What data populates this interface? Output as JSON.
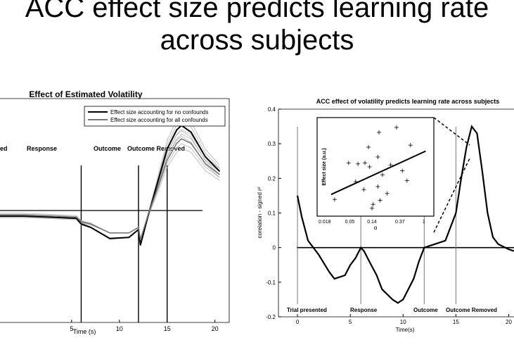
{
  "slide": {
    "title_line1": "ACC effect size predicts learning rate",
    "title_line2": "across subjects"
  },
  "chart_data": [
    {
      "type": "line",
      "title": "Effect of Estimated Volatility",
      "xlabel": "Time (s)",
      "ylabel": "",
      "x_ticks": [
        5,
        10,
        15,
        20
      ],
      "xlim": [
        -2.5,
        21.5
      ],
      "ylim": [
        -1,
        1
      ],
      "legend_position": "top-right",
      "legend": [
        "Effect size accounting for no confounds",
        "Effect size accounting for all confounds"
      ],
      "event_lines": [
        {
          "label": "ed",
          "x": 0
        },
        {
          "label": "Response",
          "x": 6
        },
        {
          "label": "Outcome",
          "x": 12
        },
        {
          "label": "Outcome Removed",
          "x": 15
        }
      ],
      "series": [
        {
          "name": "Effect size accounting for no confounds",
          "color": "#000000",
          "x": [
            -2.5,
            0,
            3,
            5.5,
            6,
            7,
            9,
            11,
            12,
            12.2,
            13,
            14,
            15,
            16,
            16.5,
            17.5,
            19,
            20.5
          ],
          "y": [
            -0.05,
            -0.05,
            -0.06,
            -0.07,
            -0.12,
            -0.15,
            -0.25,
            -0.24,
            -0.17,
            -0.31,
            -0.05,
            0.25,
            0.55,
            0.72,
            0.76,
            0.7,
            0.48,
            0.35
          ]
        },
        {
          "name": "Effect size accounting for all confounds",
          "color": "#777777",
          "x": [
            -2.5,
            0,
            3,
            5.5,
            6,
            7,
            9,
            11,
            12,
            12.2,
            13,
            14,
            15,
            16,
            16.5,
            17.5,
            19,
            20.5
          ],
          "y": [
            -0.04,
            -0.04,
            -0.05,
            -0.06,
            -0.1,
            -0.12,
            -0.2,
            -0.2,
            -0.15,
            -0.26,
            -0.04,
            0.2,
            0.45,
            0.6,
            0.64,
            0.6,
            0.42,
            0.32
          ]
        }
      ]
    },
    {
      "type": "line",
      "title": "ACC effect of volatility predicts learning rate across subjects",
      "xlabel": "Time(s)",
      "ylabel": "corelation - signed r²",
      "x_ticks": [
        0,
        5,
        10,
        15,
        20
      ],
      "y_ticks": [
        -0.2,
        -0.1,
        0,
        0.1,
        0.2,
        0.3,
        0.4
      ],
      "y_tick_labels": [
        "-0.2",
        "-0.1",
        "0",
        "0.1",
        "0.2",
        "0.3",
        "0.4"
      ],
      "xlim": [
        -1.8,
        20.5
      ],
      "ylim": [
        -0.2,
        0.4
      ],
      "event_lines": [
        {
          "label": "Trial presented",
          "x": 0
        },
        {
          "label": "Response",
          "x": 6
        },
        {
          "label": "Outcome",
          "x": 12
        },
        {
          "label": "Outcome Removed",
          "x": 15
        }
      ],
      "series": [
        {
          "name": "",
          "color": "#000000",
          "x": [
            0,
            0.4,
            1,
            1.5,
            2,
            3,
            3.5,
            4.5,
            5,
            5.5,
            6,
            6.3,
            6.8,
            7.5,
            8,
            9,
            9.5,
            10,
            11,
            11.5,
            12,
            12.5,
            13,
            14,
            15,
            15.5,
            16,
            16.5,
            17,
            17.5,
            18,
            18.5,
            19,
            20,
            20.5
          ],
          "y": [
            0.15,
            0.09,
            0.02,
            0,
            -0.02,
            -0.07,
            -0.09,
            -0.08,
            -0.05,
            -0.03,
            0,
            -0.01,
            -0.04,
            -0.08,
            -0.12,
            -0.15,
            -0.16,
            -0.15,
            -0.09,
            -0.04,
            0,
            0.005,
            0.01,
            0.02,
            0.1,
            0.2,
            0.29,
            0.35,
            0.33,
            0.22,
            0.1,
            0.03,
            0.01,
            -0.005,
            -0.01
          ]
        }
      ],
      "inset": {
        "type": "scatter",
        "xlabel": "α",
        "ylabel": "Effect size (a.u.)",
        "x_tick_labels": [
          "0.018",
          "0.05",
          "0.14",
          "0.37",
          "1"
        ],
        "points": [
          {
            "x": 0.27,
            "y": 0.54
          },
          {
            "x": 0.35,
            "y": 0.53
          },
          {
            "x": 0.41,
            "y": 0.54
          },
          {
            "x": 0.45,
            "y": 0.5
          },
          {
            "x": 0.53,
            "y": 0.85
          },
          {
            "x": 0.56,
            "y": 0.42
          },
          {
            "x": 0.52,
            "y": 0.6
          },
          {
            "x": 0.48,
            "y": 0.12
          },
          {
            "x": 0.63,
            "y": 0.52
          },
          {
            "x": 0.68,
            "y": 0.9
          },
          {
            "x": 0.73,
            "y": 0.46
          },
          {
            "x": 0.77,
            "y": 0.36
          },
          {
            "x": 0.33,
            "y": 0.35
          },
          {
            "x": 0.52,
            "y": 0.3
          },
          {
            "x": 0.4,
            "y": 0.27
          },
          {
            "x": 0.6,
            "y": 0.23
          },
          {
            "x": 0.47,
            "y": 0.08
          },
          {
            "x": 0.54,
            "y": 0.16
          },
          {
            "x": 0.15,
            "y": 0.17
          },
          {
            "x": 0.44,
            "y": 0.7
          },
          {
            "x": 0.8,
            "y": 0.72
          }
        ],
        "fit": {
          "x": [
            0.12,
            0.93
          ],
          "y": [
            0.22,
            0.66
          ]
        }
      }
    }
  ]
}
